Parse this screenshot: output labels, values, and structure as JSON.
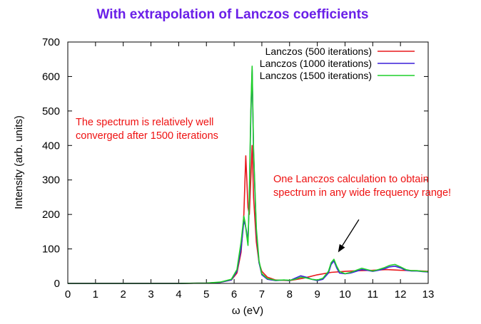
{
  "chart_data": {
    "type": "line",
    "title": "With extrapolation of Lanczos coefficients",
    "xlabel": "ω (eV)",
    "ylabel": "Intensity (arb. units)",
    "xlim": [
      0,
      13
    ],
    "ylim": [
      0,
      700
    ],
    "xticks": [
      "0",
      "1",
      "2",
      "3",
      "4",
      "5",
      "6",
      "7",
      "8",
      "9",
      "10",
      "11",
      "12",
      "13"
    ],
    "yticks": [
      "0",
      "100",
      "200",
      "300",
      "400",
      "500",
      "600",
      "700"
    ],
    "legend_position": "top-right",
    "series": [
      {
        "name": "Lanczos (500 iterations)",
        "color": "#e8181c",
        "x": [
          0,
          4,
          5,
          5.5,
          5.9,
          6.1,
          6.25,
          6.35,
          6.42,
          6.5,
          6.55,
          6.6,
          6.65,
          6.7,
          6.8,
          6.9,
          7.0,
          7.2,
          7.5,
          8.0,
          8.5,
          9.0,
          9.5,
          10.0,
          10.5,
          11.0,
          11.5,
          12.0,
          12.5,
          13.0
        ],
        "y": [
          0,
          0,
          1,
          3,
          10,
          30,
          90,
          200,
          370,
          220,
          200,
          300,
          400,
          250,
          120,
          60,
          35,
          18,
          10,
          8,
          15,
          25,
          32,
          35,
          37,
          38,
          40,
          38,
          37,
          35
        ]
      },
      {
        "name": "Lanczos (1000 iterations)",
        "color": "#3a1fd9",
        "x": [
          0,
          4,
          5,
          5.5,
          5.9,
          6.1,
          6.25,
          6.35,
          6.4,
          6.45,
          6.5,
          6.55,
          6.6,
          6.65,
          6.7,
          6.8,
          6.9,
          7.0,
          7.2,
          7.5,
          7.8,
          8.0,
          8.2,
          8.4,
          8.6,
          8.8,
          9.0,
          9.2,
          9.4,
          9.5,
          9.6,
          9.7,
          9.8,
          10.0,
          10.2,
          10.4,
          10.6,
          10.8,
          11.0,
          11.2,
          11.4,
          11.6,
          11.8,
          12.0,
          12.2,
          12.4,
          12.6,
          12.8,
          13.0
        ],
        "y": [
          0,
          0,
          1,
          3,
          10,
          35,
          100,
          180,
          170,
          150,
          120,
          250,
          480,
          620,
          380,
          150,
          60,
          25,
          12,
          8,
          10,
          8,
          15,
          22,
          18,
          12,
          8,
          12,
          30,
          55,
          65,
          45,
          30,
          28,
          30,
          35,
          40,
          38,
          35,
          38,
          42,
          48,
          50,
          45,
          38,
          36,
          36,
          34,
          33
        ]
      },
      {
        "name": "Lanczos (1500 iterations)",
        "color": "#1fcf2a",
        "x": [
          0,
          4,
          5,
          5.5,
          5.9,
          6.1,
          6.25,
          6.35,
          6.4,
          6.45,
          6.5,
          6.55,
          6.6,
          6.65,
          6.7,
          6.8,
          6.9,
          7.0,
          7.2,
          7.5,
          7.8,
          8.0,
          8.2,
          8.4,
          8.6,
          8.8,
          9.0,
          9.2,
          9.4,
          9.5,
          9.6,
          9.7,
          9.8,
          10.0,
          10.2,
          10.4,
          10.6,
          10.8,
          11.0,
          11.2,
          11.4,
          11.6,
          11.8,
          12.0,
          12.2,
          12.4,
          12.6,
          12.8,
          13.0
        ],
        "y": [
          0,
          0,
          1,
          4,
          12,
          40,
          120,
          195,
          175,
          140,
          110,
          260,
          500,
          630,
          390,
          160,
          65,
          28,
          14,
          9,
          10,
          9,
          12,
          18,
          16,
          12,
          10,
          15,
          35,
          60,
          70,
          50,
          35,
          28,
          32,
          38,
          44,
          40,
          36,
          40,
          45,
          52,
          55,
          48,
          40,
          37,
          37,
          35,
          34
        ]
      }
    ],
    "annotations": [
      {
        "text_lines": [
          "The spectrum is relatively well",
          "converged after 1500 iterations"
        ]
      },
      {
        "text_lines": [
          "One Lanczos calculation to obtain",
          "spectrum in any wide frequency range!"
        ],
        "arrow_to": {
          "x": 9.75,
          "y": 90
        },
        "arrow_from": {
          "x": 10.5,
          "y": 185
        }
      }
    ]
  }
}
